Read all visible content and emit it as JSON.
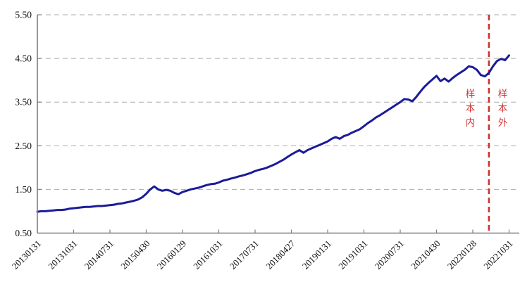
{
  "chart_data": {
    "type": "line",
    "title": "",
    "x_tick_labels": [
      "20130131",
      "20131031",
      "20140731",
      "20150430",
      "20160129",
      "20161031",
      "20170731",
      "20180427",
      "20190131",
      "20191031",
      "20200731",
      "20210430",
      "20220128",
      "20221031"
    ],
    "y_tick_labels": [
      "0.50",
      "1.50",
      "2.50",
      "3.50",
      "4.50",
      "5.50"
    ],
    "y_tick_values": [
      0.5,
      1.5,
      2.5,
      3.5,
      4.5,
      5.5
    ],
    "ylim": [
      0.5,
      5.5
    ],
    "x_range": {
      "start_month": "2013-01",
      "end_month": "2022-10",
      "freq": "monthly"
    },
    "grid": "horizontal-dashed",
    "legend_position": "none",
    "series": [
      {
        "name": "line-series",
        "color": "#1b1b99",
        "values": [
          0.99,
          1.0,
          1.0,
          1.01,
          1.02,
          1.03,
          1.03,
          1.04,
          1.06,
          1.07,
          1.08,
          1.09,
          1.1,
          1.1,
          1.11,
          1.12,
          1.12,
          1.13,
          1.14,
          1.15,
          1.17,
          1.18,
          1.2,
          1.22,
          1.24,
          1.27,
          1.32,
          1.4,
          1.5,
          1.57,
          1.5,
          1.47,
          1.49,
          1.47,
          1.42,
          1.39,
          1.44,
          1.47,
          1.5,
          1.52,
          1.54,
          1.57,
          1.6,
          1.62,
          1.63,
          1.66,
          1.7,
          1.72,
          1.75,
          1.77,
          1.8,
          1.82,
          1.85,
          1.88,
          1.92,
          1.95,
          1.97,
          2.0,
          2.04,
          2.08,
          2.13,
          2.18,
          2.24,
          2.3,
          2.35,
          2.4,
          2.34,
          2.4,
          2.44,
          2.48,
          2.52,
          2.56,
          2.6,
          2.66,
          2.7,
          2.66,
          2.72,
          2.75,
          2.8,
          2.84,
          2.88,
          2.95,
          3.02,
          3.08,
          3.15,
          3.2,
          3.26,
          3.32,
          3.38,
          3.44,
          3.5,
          3.57,
          3.56,
          3.52,
          3.62,
          3.74,
          3.85,
          3.94,
          4.02,
          4.1,
          3.98,
          4.04,
          3.97,
          4.05,
          4.12,
          4.18,
          4.24,
          4.32,
          4.3,
          4.24,
          4.12,
          4.09,
          4.17,
          4.32,
          4.44,
          4.49,
          4.46,
          4.57
        ]
      }
    ],
    "annotations": {
      "sample_split_line": {
        "month": "2022-05",
        "style": "dashed-vertical",
        "color": "#cc3232"
      },
      "in_sample_label": "样本内",
      "out_of_sample_label": "样本外",
      "label_color": "#cc3232"
    }
  },
  "colors": {
    "background": "#ffffff",
    "line": "#1b1b99",
    "grid": "#ababab",
    "axis": "#7f7f7f",
    "tick_text": "#111111",
    "split_red": "#cc3232"
  }
}
